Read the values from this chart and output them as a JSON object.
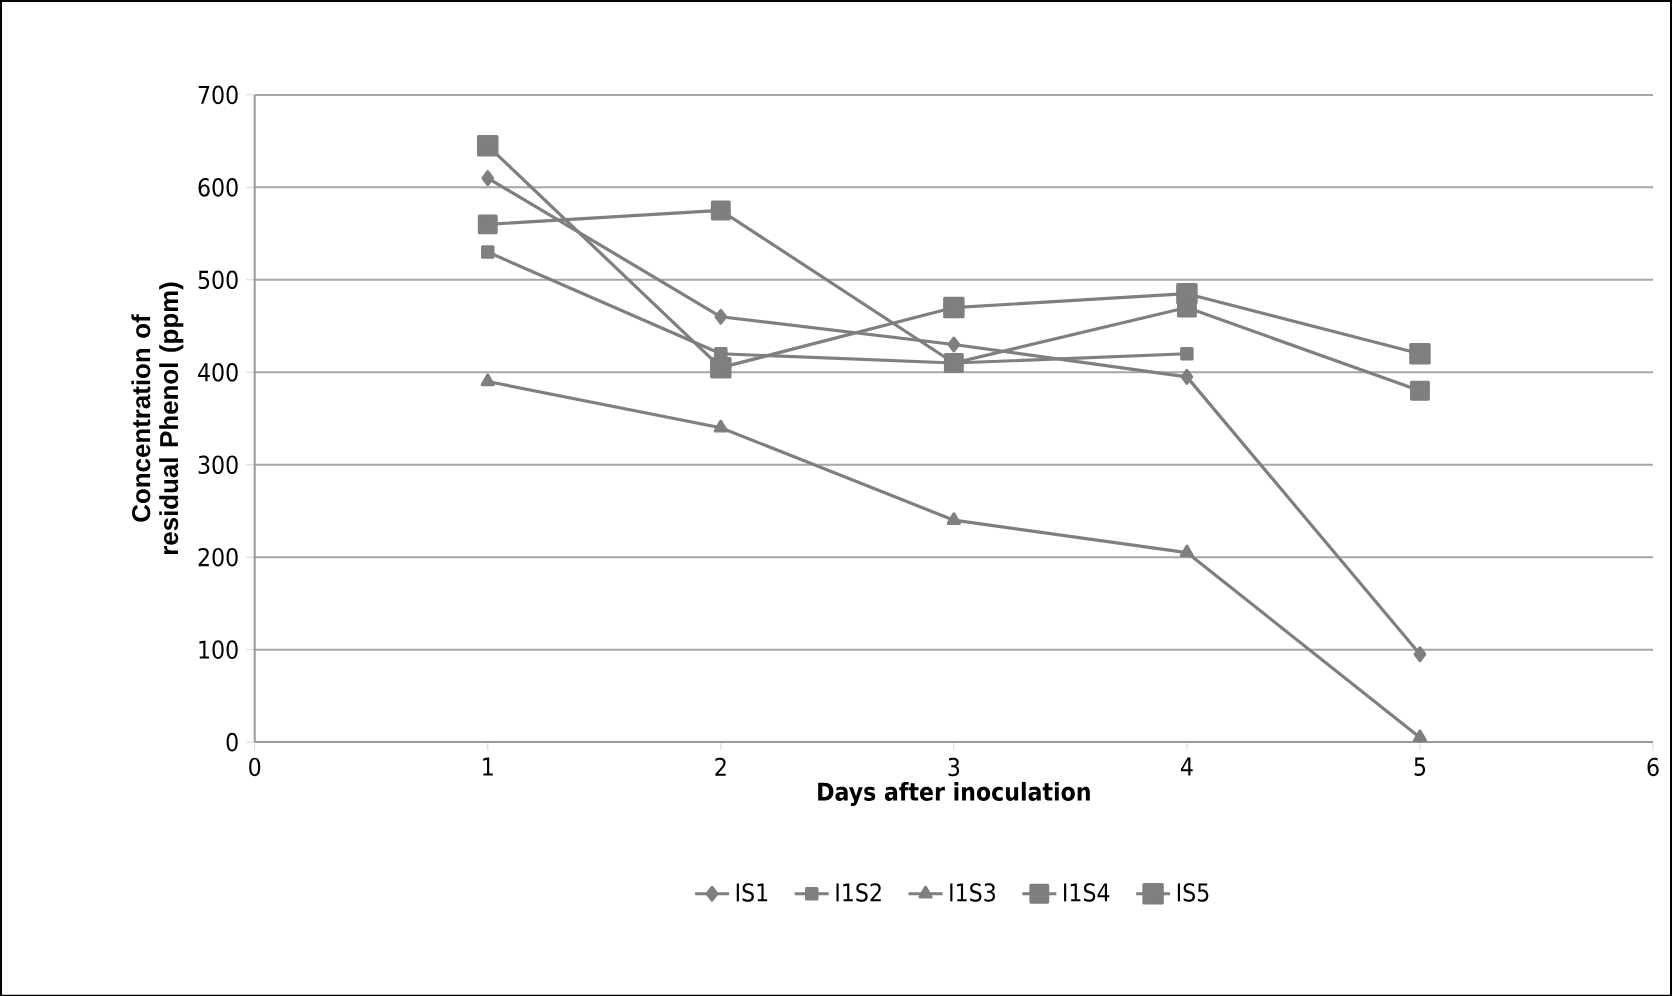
{
  "chart_data": {
    "type": "line",
    "xlabel": "Days after inoculation",
    "ylabel": "Concentration of residual Phenol (ppm)",
    "x": [
      1,
      2,
      3,
      4,
      5
    ],
    "xlim": [
      0,
      6
    ],
    "xticks": [
      0,
      1,
      2,
      3,
      4,
      5,
      6
    ],
    "ylim": [
      0,
      700
    ],
    "yticks": [
      0,
      100,
      200,
      300,
      400,
      500,
      600,
      700
    ],
    "grid": "y",
    "legend": "bottom",
    "series": [
      {
        "name": "IS1",
        "color": "#7f7f7f",
        "marker": "diamond",
        "values": [
          610,
          460,
          430,
          395,
          95
        ]
      },
      {
        "name": "I1S2",
        "color": "#7f7f7f",
        "marker": "square",
        "values": [
          530,
          420,
          410,
          420,
          null
        ]
      },
      {
        "name": "I1S3",
        "color": "#7f7f7f",
        "marker": "triangle",
        "values": [
          390,
          340,
          240,
          205,
          5
        ]
      },
      {
        "name": "I1S4",
        "color": "#7f7f7f",
        "marker": "square",
        "values": [
          560,
          575,
          410,
          470,
          380
        ]
      },
      {
        "name": "IS5",
        "color": "#7f7f7f",
        "marker": "square",
        "values": [
          645,
          405,
          470,
          485,
          420
        ]
      }
    ]
  }
}
